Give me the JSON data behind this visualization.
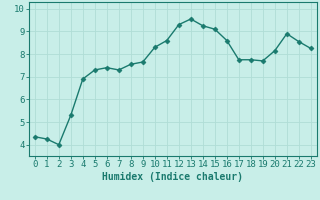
{
  "x": [
    0,
    1,
    2,
    3,
    4,
    5,
    6,
    7,
    8,
    9,
    10,
    11,
    12,
    13,
    14,
    15,
    16,
    17,
    18,
    19,
    20,
    21,
    22,
    23
  ],
  "y": [
    4.35,
    4.25,
    4.0,
    5.3,
    6.9,
    7.3,
    7.4,
    7.3,
    7.55,
    7.65,
    8.3,
    8.6,
    9.3,
    9.55,
    9.25,
    9.1,
    8.6,
    7.75,
    7.75,
    7.7,
    8.15,
    8.9,
    8.55,
    8.25
  ],
  "line_color": "#1a7a6e",
  "bg_color": "#c8eee8",
  "grid_color": "#b0ddd6",
  "xlabel": "Humidex (Indice chaleur)",
  "ylim": [
    3.5,
    10.3
  ],
  "xlim": [
    -0.5,
    23.5
  ],
  "yticks": [
    4,
    5,
    6,
    7,
    8,
    9,
    10
  ],
  "xticks": [
    0,
    1,
    2,
    3,
    4,
    5,
    6,
    7,
    8,
    9,
    10,
    11,
    12,
    13,
    14,
    15,
    16,
    17,
    18,
    19,
    20,
    21,
    22,
    23
  ],
  "marker": "D",
  "marker_size": 2.5,
  "line_width": 1.0,
  "xlabel_fontsize": 7,
  "tick_fontsize": 6.5
}
